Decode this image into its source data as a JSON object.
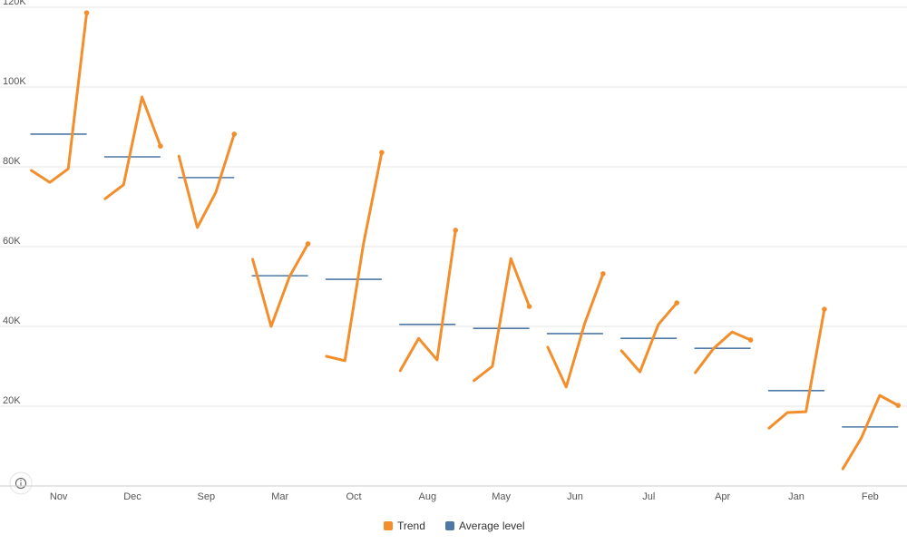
{
  "chart_data": {
    "type": "cycle-line",
    "categories": [
      "Nov",
      "Dec",
      "Sep",
      "Mar",
      "Oct",
      "Aug",
      "May",
      "Jun",
      "Jul",
      "Apr",
      "Jan",
      "Feb"
    ],
    "series": [
      {
        "name": "Trend",
        "color": "#f28e2b",
        "values": [
          [
            79100,
            76100,
            79500,
            118600
          ],
          [
            72000,
            75500,
            97500,
            85200
          ],
          [
            82700,
            64800,
            73600,
            88200
          ],
          [
            56800,
            40000,
            52500,
            60700
          ],
          [
            32500,
            31400,
            60500,
            83600
          ],
          [
            28900,
            37000,
            31600,
            64100
          ],
          [
            26400,
            30000,
            57000,
            45000
          ],
          [
            34800,
            24800,
            40700,
            53200
          ],
          [
            33900,
            28600,
            40500,
            45900
          ],
          [
            28400,
            34500,
            38600,
            36600
          ],
          [
            14500,
            18400,
            18600,
            44300
          ],
          [
            4300,
            12000,
            22700,
            20200
          ]
        ]
      },
      {
        "name": "Average level",
        "color": "#4e79a7",
        "values": [
          88200,
          82500,
          77300,
          52700,
          51800,
          40500,
          39500,
          38200,
          37000,
          34500,
          23900,
          14800
        ]
      }
    ],
    "ylim": [
      0,
      120000
    ],
    "yticks": [
      {
        "value": 0,
        "label": ""
      },
      {
        "value": 20000,
        "label": "20K"
      },
      {
        "value": 40000,
        "label": "40K"
      },
      {
        "value": 60000,
        "label": "60K"
      },
      {
        "value": 80000,
        "label": "80K"
      },
      {
        "value": 100000,
        "label": "100K"
      },
      {
        "value": 120000,
        "label": "120K"
      }
    ],
    "grid": true
  }
}
